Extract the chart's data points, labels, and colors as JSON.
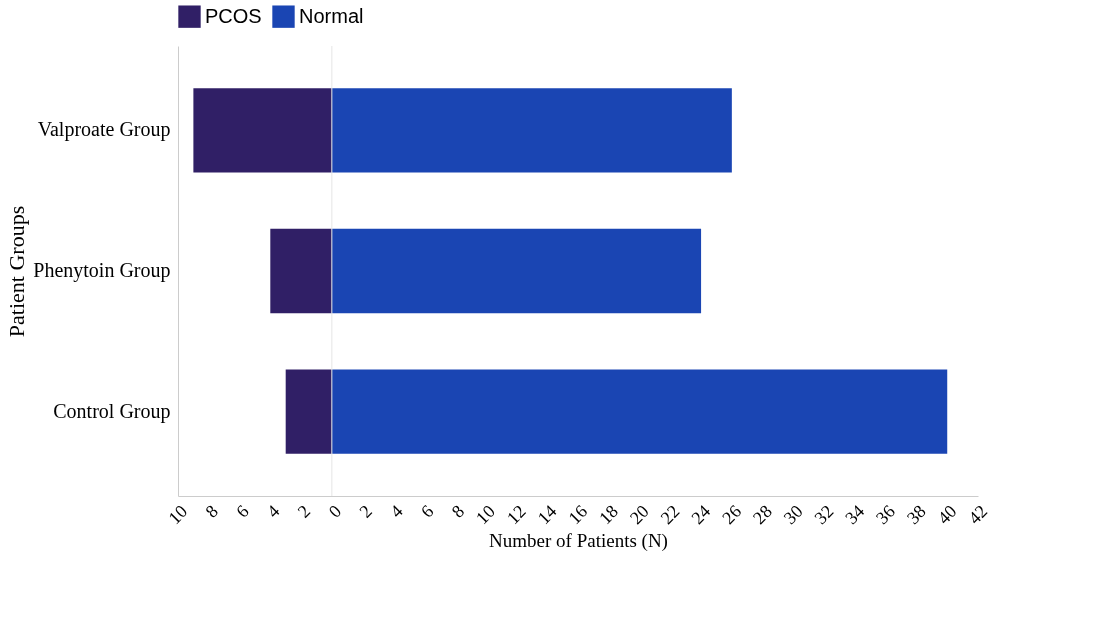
{
  "chart_data": {
    "type": "bar",
    "orientation": "horizontal",
    "stacked": true,
    "ref_lines": [
      {
        "axis": "x",
        "value": 0,
        "color": "#e6e6e6"
      }
    ],
    "categories": [
      "Valproate Group",
      "Phenytoin Group",
      "Control Group"
    ],
    "series": [
      {
        "name": "PCOS",
        "color": "#301f66",
        "values": [
          -9,
          -4,
          -3
        ]
      },
      {
        "name": "Normal",
        "color": "#1a45b3",
        "values": [
          26,
          24,
          40
        ]
      }
    ],
    "xlabel": "Number of Patients (N)",
    "ylabel": "Patient Groups",
    "xlim": [
      -10,
      42
    ],
    "xticks": [
      {
        "value": -10,
        "label": "10"
      },
      {
        "value": -8,
        "label": "8"
      },
      {
        "value": -6,
        "label": "6"
      },
      {
        "value": -4,
        "label": "4"
      },
      {
        "value": -2,
        "label": "2"
      },
      0,
      2,
      4,
      6,
      8,
      10,
      12,
      14,
      16,
      18,
      20,
      22,
      24,
      26,
      28,
      30,
      32,
      34,
      36,
      38,
      40,
      42
    ],
    "grid": false,
    "legend": "top"
  }
}
